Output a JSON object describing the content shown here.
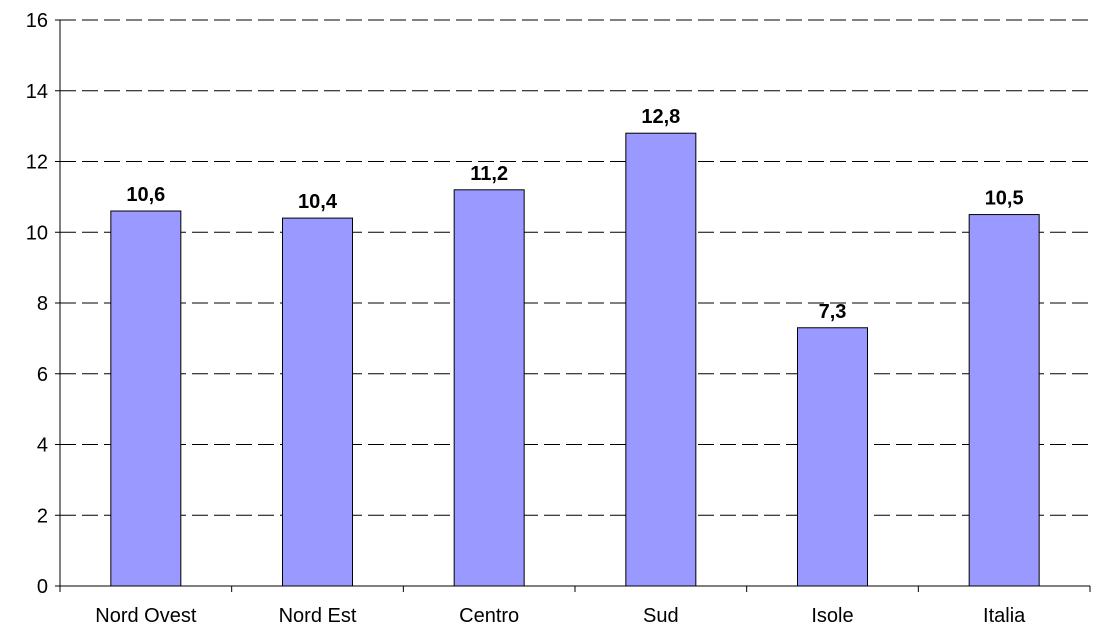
{
  "chart_data": {
    "type": "bar",
    "categories": [
      "Nord Ovest",
      "Nord Est",
      "Centro",
      "Sud",
      "Isole",
      "Italia"
    ],
    "values": [
      10.6,
      10.4,
      11.2,
      12.8,
      7.3,
      10.5
    ],
    "data_labels": [
      "10,6",
      "10,4",
      "11,2",
      "12,8",
      "7,3",
      "10,5"
    ],
    "ylim": [
      0,
      16
    ],
    "yticks": [
      0,
      2,
      4,
      6,
      8,
      10,
      12,
      14,
      16
    ],
    "ytick_labels": [
      "0",
      "2",
      "4",
      "6",
      "8",
      "10",
      "12",
      "14",
      "16"
    ],
    "grid": "dashed horizontal",
    "legend": "none",
    "colors": {
      "bar_fill": "#9999ff",
      "bar_stroke": "#000000",
      "grid": "#000000",
      "axis": "#000000",
      "background": "#ffffff"
    }
  }
}
